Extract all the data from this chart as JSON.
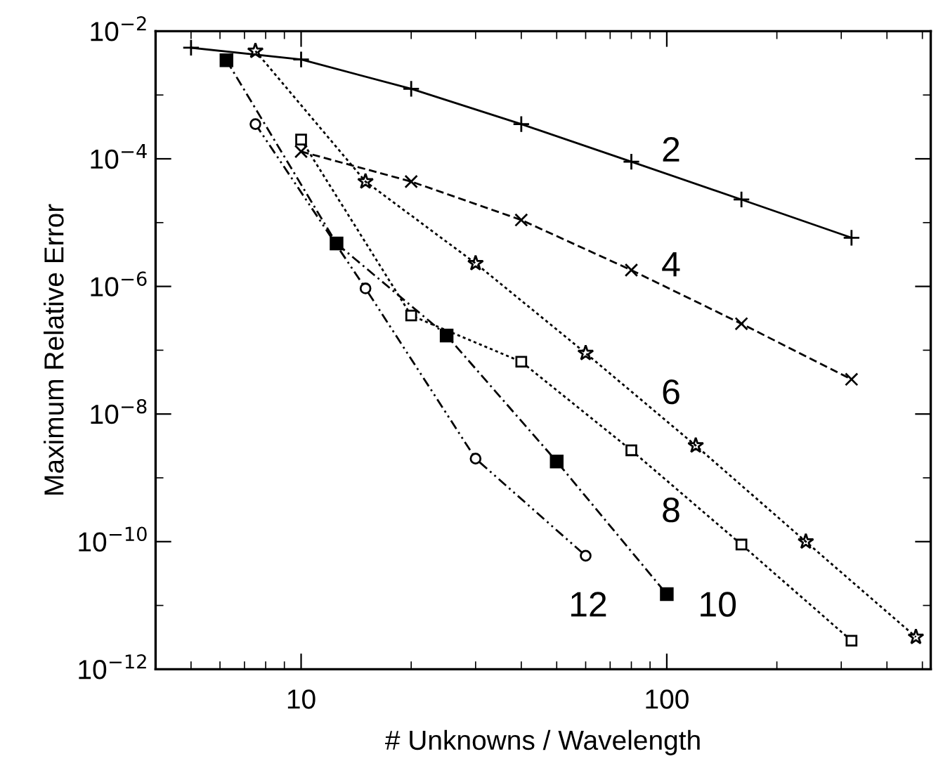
{
  "chart_data": {
    "type": "line",
    "xlabel": "# Unknowns / Wavelength",
    "ylabel": "Maximum Relative Error",
    "log": "xy",
    "grid": false,
    "legend": false,
    "xlim": [
      4,
      527
    ],
    "ylim": [
      1e-12,
      0.01
    ],
    "xticks": [
      {
        "value": 5,
        "label": null
      },
      {
        "value": 6,
        "label": null
      },
      {
        "value": 7,
        "label": null
      },
      {
        "value": 8,
        "label": null
      },
      {
        "value": 9,
        "label": null
      },
      10,
      {
        "value": 20,
        "label": null
      },
      {
        "value": 30,
        "label": null
      },
      {
        "value": 40,
        "label": null
      },
      {
        "value": 50,
        "label": null
      },
      {
        "value": 60,
        "label": null
      },
      {
        "value": 70,
        "label": null
      },
      {
        "value": 80,
        "label": null
      },
      {
        "value": 90,
        "label": null
      },
      100,
      {
        "value": 200,
        "label": null
      },
      {
        "value": 300,
        "label": null
      },
      {
        "value": 400,
        "label": null
      },
      {
        "value": 500,
        "label": null
      }
    ],
    "yticks": [
      {
        "value": 1e-12,
        "label": "10$^{−12}$"
      },
      {
        "value": 1e-11,
        "label": null
      },
      {
        "value": 1e-10,
        "label": "10$^{−10}$"
      },
      {
        "value": 1e-09,
        "label": null
      },
      {
        "value": 1e-08,
        "label": "10$^{−8}$"
      },
      {
        "value": 1e-07,
        "label": null
      },
      {
        "value": 1e-06,
        "label": "10$^{−6}$"
      },
      {
        "value": 1e-05,
        "label": null
      },
      {
        "value": 0.0001,
        "label": "10$^{−4}$"
      },
      {
        "value": 0.001,
        "label": null
      },
      {
        "value": 0.01,
        "label": "10$^{−2}$"
      }
    ],
    "series": [
      {
        "color": "#000000",
        "marker": "plus",
        "line_style": "solid",
        "x": [
          5,
          10,
          20,
          40,
          80,
          160,
          320
        ],
        "values": [
          0.0055,
          0.0036,
          0.00125,
          0.00035,
          9e-05,
          2.3e-05,
          5.8e-06
        ]
      },
      {
        "color": "#000000",
        "marker": "cross",
        "line_style": "dashed",
        "x": [
          10,
          20,
          40,
          80,
          160,
          320
        ],
        "values": [
          0.00013,
          4.4e-05,
          1.1e-05,
          1.8e-06,
          2.6e-07,
          3.5e-08
        ]
      },
      {
        "color": "#000000",
        "marker": "star",
        "line_style": "dotted",
        "x": [
          7.5,
          15,
          30,
          60,
          120,
          240,
          480
        ],
        "values": [
          0.0049,
          4.4e-05,
          2.3e-06,
          9e-08,
          3.2e-09,
          1e-10,
          3.2e-12
        ]
      },
      {
        "color": "#000000",
        "marker": "square",
        "line_style": "dotted",
        "x": [
          10,
          20,
          40,
          80,
          160,
          320
        ],
        "values": [
          0.0002,
          3.5e-07,
          6.6e-08,
          2.7e-09,
          9e-11,
          2.8e-12
        ]
      },
      {
        "color": "#000000",
        "marker": "square",
        "line_style": "dashdot",
        "x": [
          6.25,
          12.5,
          25,
          50,
          100
        ],
        "values": [
          0.0035,
          4.7e-06,
          1.7e-07,
          1.8e-09,
          1.5e-11
        ]
      },
      {
        "color": "#000000",
        "marker": "circle",
        "line_style": "dashdotdot",
        "x": [
          7.5,
          15,
          30,
          60
        ],
        "values": [
          0.00035,
          9.3e-07,
          2e-09,
          6e-11
        ]
      }
    ],
    "annotations": [
      "2",
      "4",
      "6",
      "8",
      "12",
      "10"
    ]
  }
}
